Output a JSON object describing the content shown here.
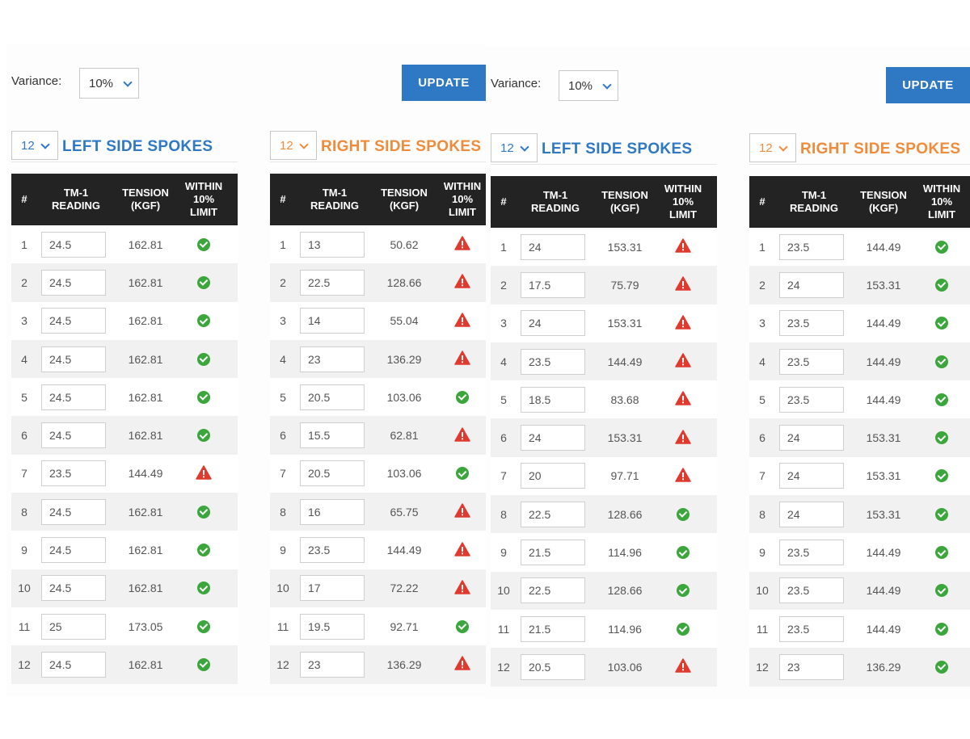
{
  "panels": [
    {
      "variance_label": "Variance:",
      "variance_value": "10%",
      "update_label": "UPDATE",
      "left": {
        "count": "12",
        "title": "LEFT SIDE SPOKES",
        "rows": [
          {
            "num": "1",
            "reading": "24.5",
            "tension": "162.81",
            "within": true
          },
          {
            "num": "2",
            "reading": "24.5",
            "tension": "162.81",
            "within": true
          },
          {
            "num": "3",
            "reading": "24.5",
            "tension": "162.81",
            "within": true
          },
          {
            "num": "4",
            "reading": "24.5",
            "tension": "162.81",
            "within": true
          },
          {
            "num": "5",
            "reading": "24.5",
            "tension": "162.81",
            "within": true
          },
          {
            "num": "6",
            "reading": "24.5",
            "tension": "162.81",
            "within": true
          },
          {
            "num": "7",
            "reading": "23.5",
            "tension": "144.49",
            "within": false
          },
          {
            "num": "8",
            "reading": "24.5",
            "tension": "162.81",
            "within": true
          },
          {
            "num": "9",
            "reading": "24.5",
            "tension": "162.81",
            "within": true
          },
          {
            "num": "10",
            "reading": "24.5",
            "tension": "162.81",
            "within": true
          },
          {
            "num": "11",
            "reading": "25",
            "tension": "173.05",
            "within": true
          },
          {
            "num": "12",
            "reading": "24.5",
            "tension": "162.81",
            "within": true
          }
        ]
      },
      "right": {
        "count": "12",
        "title": "RIGHT SIDE SPOKES",
        "rows": [
          {
            "num": "1",
            "reading": "13",
            "tension": "50.62",
            "within": false
          },
          {
            "num": "2",
            "reading": "22.5",
            "tension": "128.66",
            "within": false
          },
          {
            "num": "3",
            "reading": "14",
            "tension": "55.04",
            "within": false
          },
          {
            "num": "4",
            "reading": "23",
            "tension": "136.29",
            "within": false
          },
          {
            "num": "5",
            "reading": "20.5",
            "tension": "103.06",
            "within": true
          },
          {
            "num": "6",
            "reading": "15.5",
            "tension": "62.81",
            "within": false
          },
          {
            "num": "7",
            "reading": "20.5",
            "tension": "103.06",
            "within": true
          },
          {
            "num": "8",
            "reading": "16",
            "tension": "65.75",
            "within": false
          },
          {
            "num": "9",
            "reading": "23.5",
            "tension": "144.49",
            "within": false
          },
          {
            "num": "10",
            "reading": "17",
            "tension": "72.22",
            "within": false
          },
          {
            "num": "11",
            "reading": "19.5",
            "tension": "92.71",
            "within": true
          },
          {
            "num": "12",
            "reading": "23",
            "tension": "136.29",
            "within": false
          }
        ]
      }
    },
    {
      "variance_label": "Variance:",
      "variance_value": "10%",
      "update_label": "UPDATE",
      "left": {
        "count": "12",
        "title": "LEFT SIDE SPOKES",
        "rows": [
          {
            "num": "1",
            "reading": "24",
            "tension": "153.31",
            "within": false
          },
          {
            "num": "2",
            "reading": "17.5",
            "tension": "75.79",
            "within": false
          },
          {
            "num": "3",
            "reading": "24",
            "tension": "153.31",
            "within": false
          },
          {
            "num": "4",
            "reading": "23.5",
            "tension": "144.49",
            "within": false
          },
          {
            "num": "5",
            "reading": "18.5",
            "tension": "83.68",
            "within": false
          },
          {
            "num": "6",
            "reading": "24",
            "tension": "153.31",
            "within": false
          },
          {
            "num": "7",
            "reading": "20",
            "tension": "97.71",
            "within": false
          },
          {
            "num": "8",
            "reading": "22.5",
            "tension": "128.66",
            "within": true
          },
          {
            "num": "9",
            "reading": "21.5",
            "tension": "114.96",
            "within": true
          },
          {
            "num": "10",
            "reading": "22.5",
            "tension": "128.66",
            "within": true
          },
          {
            "num": "11",
            "reading": "21.5",
            "tension": "114.96",
            "within": true
          },
          {
            "num": "12",
            "reading": "20.5",
            "tension": "103.06",
            "within": false
          }
        ]
      },
      "right": {
        "count": "12",
        "title": "RIGHT SIDE SPOKES",
        "rows": [
          {
            "num": "1",
            "reading": "23.5",
            "tension": "144.49",
            "within": true
          },
          {
            "num": "2",
            "reading": "24",
            "tension": "153.31",
            "within": true
          },
          {
            "num": "3",
            "reading": "23.5",
            "tension": "144.49",
            "within": true
          },
          {
            "num": "4",
            "reading": "23.5",
            "tension": "144.49",
            "within": true
          },
          {
            "num": "5",
            "reading": "23.5",
            "tension": "144.49",
            "within": true
          },
          {
            "num": "6",
            "reading": "24",
            "tension": "153.31",
            "within": true
          },
          {
            "num": "7",
            "reading": "24",
            "tension": "153.31",
            "within": true
          },
          {
            "num": "8",
            "reading": "24",
            "tension": "153.31",
            "within": true
          },
          {
            "num": "9",
            "reading": "23.5",
            "tension": "144.49",
            "within": true
          },
          {
            "num": "10",
            "reading": "23.5",
            "tension": "144.49",
            "within": true
          },
          {
            "num": "11",
            "reading": "23.5",
            "tension": "144.49",
            "within": true
          },
          {
            "num": "12",
            "reading": "23",
            "tension": "136.29",
            "within": true
          }
        ]
      }
    }
  ],
  "table_headers": {
    "num": "#",
    "reading_1": "TM-1",
    "reading_2": "READING",
    "tension_1": "TENSION",
    "tension_2": "(KGF)",
    "limit_1": "WITHIN",
    "limit_2": "10%",
    "limit_3": "LIMIT"
  },
  "icons": {
    "ok": "check-circle-icon",
    "warn": "warning-triangle-icon"
  },
  "colors": {
    "accent_blue": "#2f78c4",
    "accent_orange": "#ef8c3b",
    "ok_green": "#3ba63b",
    "warn_red": "#e03a2f",
    "header_dark": "#232323"
  }
}
